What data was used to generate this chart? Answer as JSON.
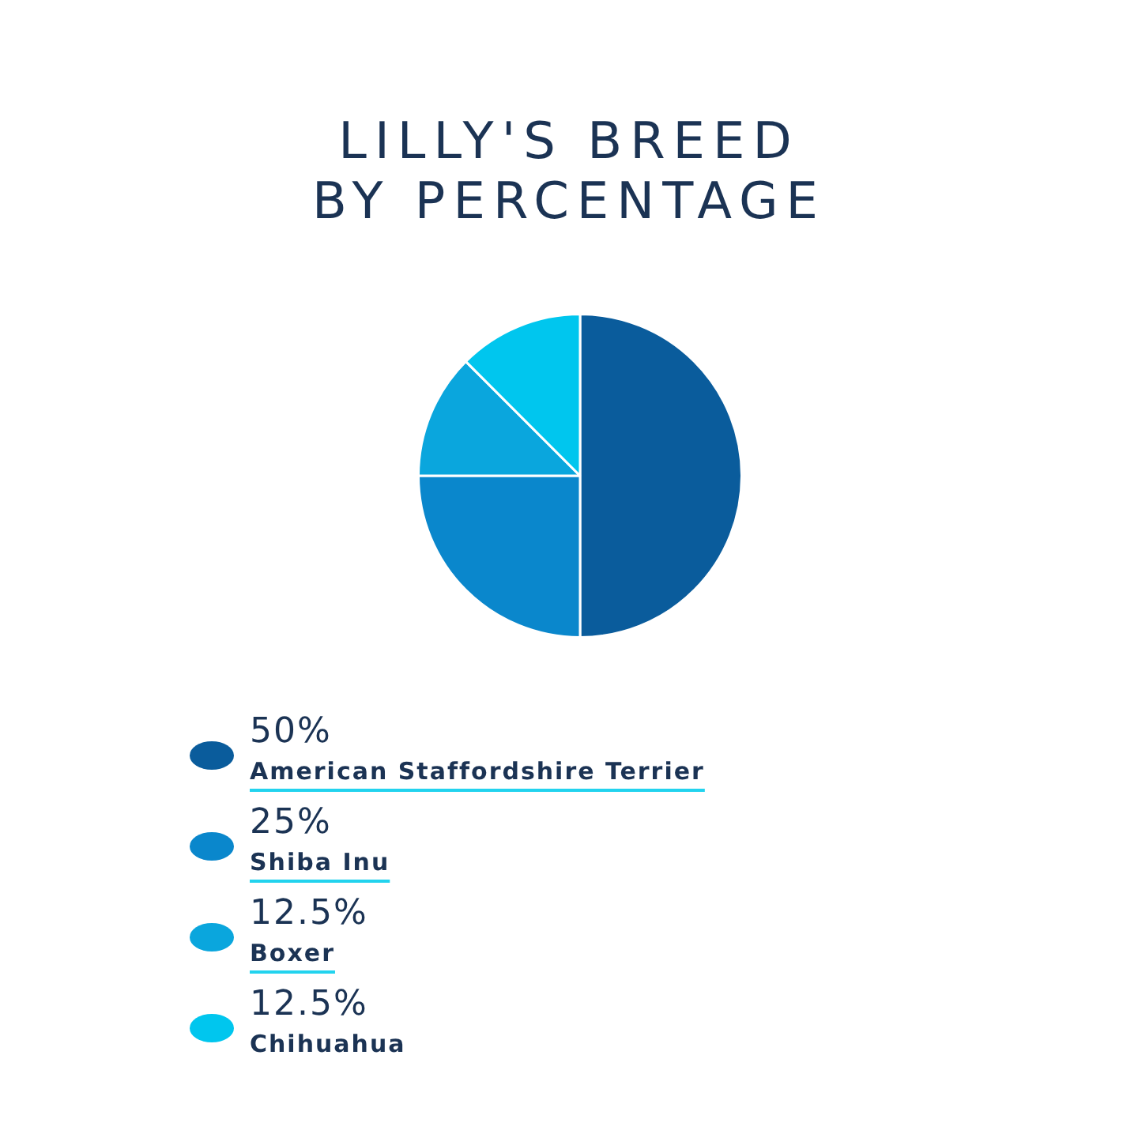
{
  "chart_data": {
    "type": "pie",
    "title": "LILLY'S BREED\nBY PERCENTAGE",
    "categories": [
      "American Staffordshire Terrier",
      "Shiba Inu",
      "Boxer",
      "Chihuahua"
    ],
    "values": [
      50,
      25,
      12.5,
      12.5
    ],
    "colors": [
      "#0a5c9c",
      "#0a87cc",
      "#0aa6dd",
      "#00c6ee"
    ],
    "value_labels": [
      "50%",
      "25%",
      "12.5%",
      "12.5%"
    ],
    "legend": "bottom"
  }
}
